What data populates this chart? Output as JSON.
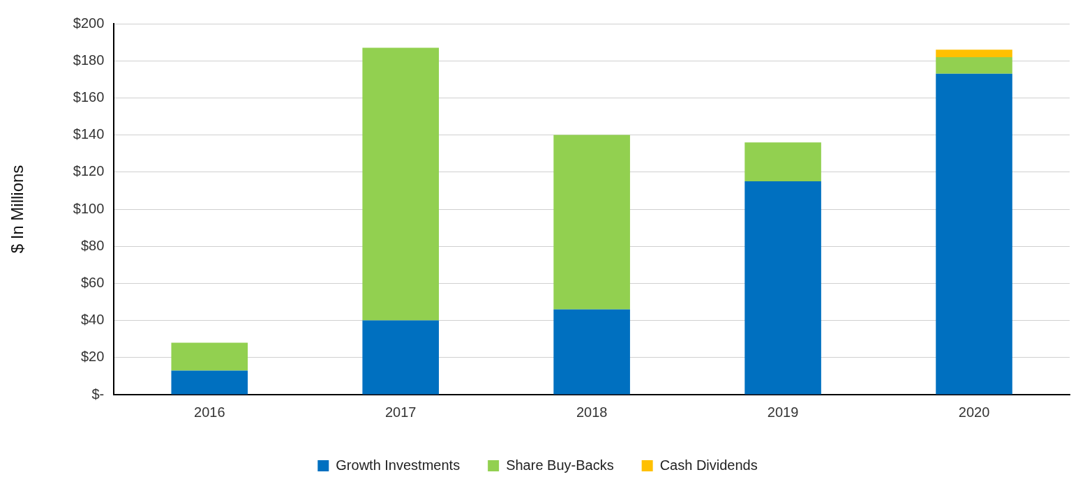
{
  "chart_data": {
    "type": "bar",
    "stacked": true,
    "ylabel": "$ In Millions",
    "categories": [
      "2016",
      "2017",
      "2018",
      "2019",
      "2020"
    ],
    "series": [
      {
        "name": "Growth Investments",
        "color": "#0070c0",
        "values": [
          13,
          40,
          46,
          115,
          173
        ]
      },
      {
        "name": "Share Buy-Backs",
        "color": "#92d050",
        "values": [
          15,
          147,
          94,
          21,
          9
        ]
      },
      {
        "name": "Cash Dividends",
        "color": "#ffc000",
        "values": [
          null,
          null,
          null,
          null,
          4
        ]
      }
    ],
    "ylim": [
      0,
      200
    ],
    "yticks": [
      {
        "value": 0,
        "label": "$-"
      },
      {
        "value": 20,
        "label": "$20"
      },
      {
        "value": 40,
        "label": "$40"
      },
      {
        "value": 60,
        "label": "$60"
      },
      {
        "value": 80,
        "label": "$80"
      },
      {
        "value": 100,
        "label": "$100"
      },
      {
        "value": 120,
        "label": "$120"
      },
      {
        "value": 140,
        "label": "$140"
      },
      {
        "value": 160,
        "label": "$160"
      },
      {
        "value": 180,
        "label": "$180"
      },
      {
        "value": 200,
        "label": "$200"
      }
    ],
    "grid": "y",
    "legend": "bottom"
  }
}
